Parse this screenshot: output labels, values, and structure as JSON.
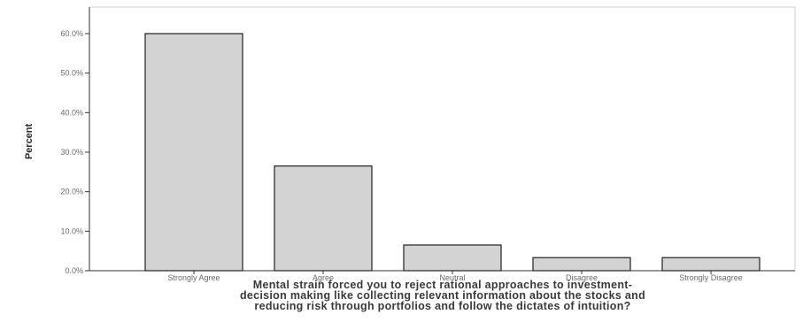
{
  "chart_data": {
    "type": "bar",
    "categories": [
      "Strongly Agree",
      "Agree",
      "Neutral",
      "Disagree",
      "Strongly Disagree"
    ],
    "values": [
      60.0,
      26.5,
      6.5,
      3.3,
      3.3
    ],
    "yticks": [
      "0.0%",
      "10.0%",
      "20.0%",
      "30.0%",
      "40.0%",
      "50.0%",
      "60.0%"
    ],
    "ytick_values": [
      0,
      10,
      20,
      30,
      40,
      50,
      60
    ],
    "ylim": [
      0,
      67
    ],
    "ylabel": "Percent",
    "xlabel_lines": [
      "Mental strain forced you to reject rational approaches to investment-",
      "decision making like collecting relevant information about the stocks and",
      "reducing risk through portfolios and follow the dictates of intuition?"
    ],
    "bar_color": "#d3d3d3",
    "bar_edge_color": "#2f2f2f",
    "grid": false,
    "legend": "none"
  }
}
